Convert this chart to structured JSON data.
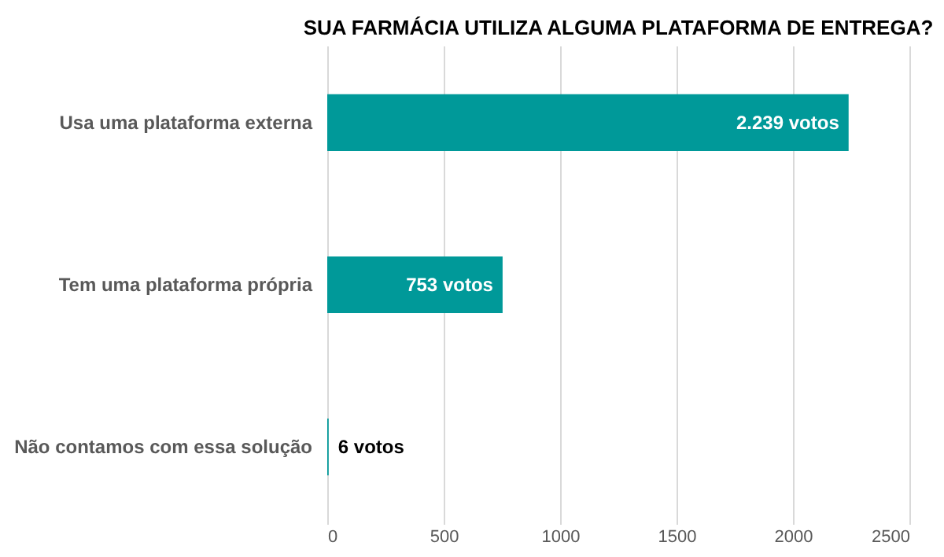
{
  "chart_data": {
    "type": "bar",
    "orientation": "horizontal",
    "title": "SUA FARMÁCIA UTILIZA ALGUMA PLATAFORMA DE ENTREGA?",
    "categories": [
      "Usa uma plataforma externa",
      "Tem uma plataforma própria",
      "Não contamos com essa solução"
    ],
    "values": [
      2239,
      753,
      6
    ],
    "value_labels": [
      "2.239 votos",
      "753 votos",
      "6 votos"
    ],
    "color": "#009999",
    "xlim": [
      0,
      2500
    ],
    "xticks": [
      0,
      500,
      1000,
      1500,
      2000,
      2500
    ],
    "grid": "x"
  }
}
